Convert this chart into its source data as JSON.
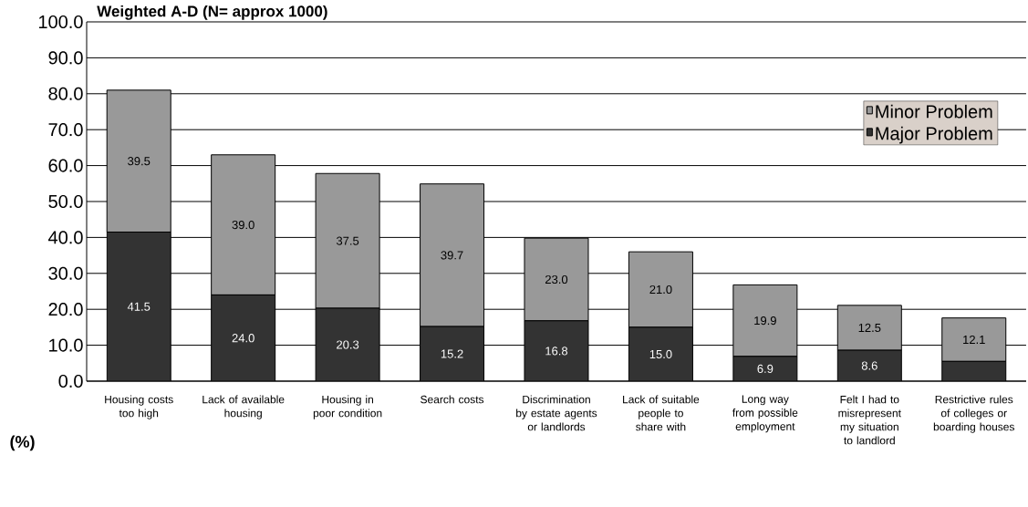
{
  "chart_data": {
    "type": "bar",
    "stacked": true,
    "title": "Weighted A-D (N= approx   1000)",
    "ylabel": "(%)",
    "categories": [
      "Housing costs too high",
      "Lack of available housing",
      "Housing in poor condition",
      "Search costs",
      "Discrimination by estate agents or landlords",
      "Lack of suitable people to share with",
      "Long way from possible employment",
      "Felt I had to misrepresent my situation to landlord",
      "Restrictive rules of colleges or boarding houses"
    ],
    "series": [
      {
        "name": "Major Problem",
        "color": "#333333",
        "values": [
          41.5,
          24.0,
          20.3,
          15.2,
          16.8,
          15.0,
          6.9,
          8.6,
          5.5
        ],
        "value_labels": [
          "41.5",
          "24.0",
          "20.3",
          "15.2",
          "16.8",
          "15.0",
          "6.9",
          "8.6",
          null
        ]
      },
      {
        "name": "Minor Problem",
        "color": "#999999",
        "values": [
          39.5,
          39.0,
          37.5,
          39.7,
          23.0,
          21.0,
          19.9,
          12.5,
          12.1
        ],
        "value_labels": [
          "39.5",
          "39.0",
          "37.5",
          "39.7",
          "23.0",
          "21.0",
          "19.9",
          "12.5",
          "12.1"
        ]
      }
    ],
    "ylim": [
      0,
      100
    ],
    "yticks": [
      {
        "value": 0,
        "label": "0.0"
      },
      {
        "value": 10,
        "label": "10.0"
      },
      {
        "value": 20,
        "label": "20.0"
      },
      {
        "value": 30,
        "label": "30.0"
      },
      {
        "value": 40,
        "label": "40.0"
      },
      {
        "value": 50,
        "label": "50.0"
      },
      {
        "value": 60,
        "label": "60.0"
      },
      {
        "value": 70,
        "label": "70.0"
      },
      {
        "value": 80,
        "label": "80.0"
      },
      {
        "value": 90,
        "label": "90.0"
      },
      {
        "value": 100,
        "label": "100.0"
      }
    ],
    "grid": "y",
    "legend": "top right"
  }
}
